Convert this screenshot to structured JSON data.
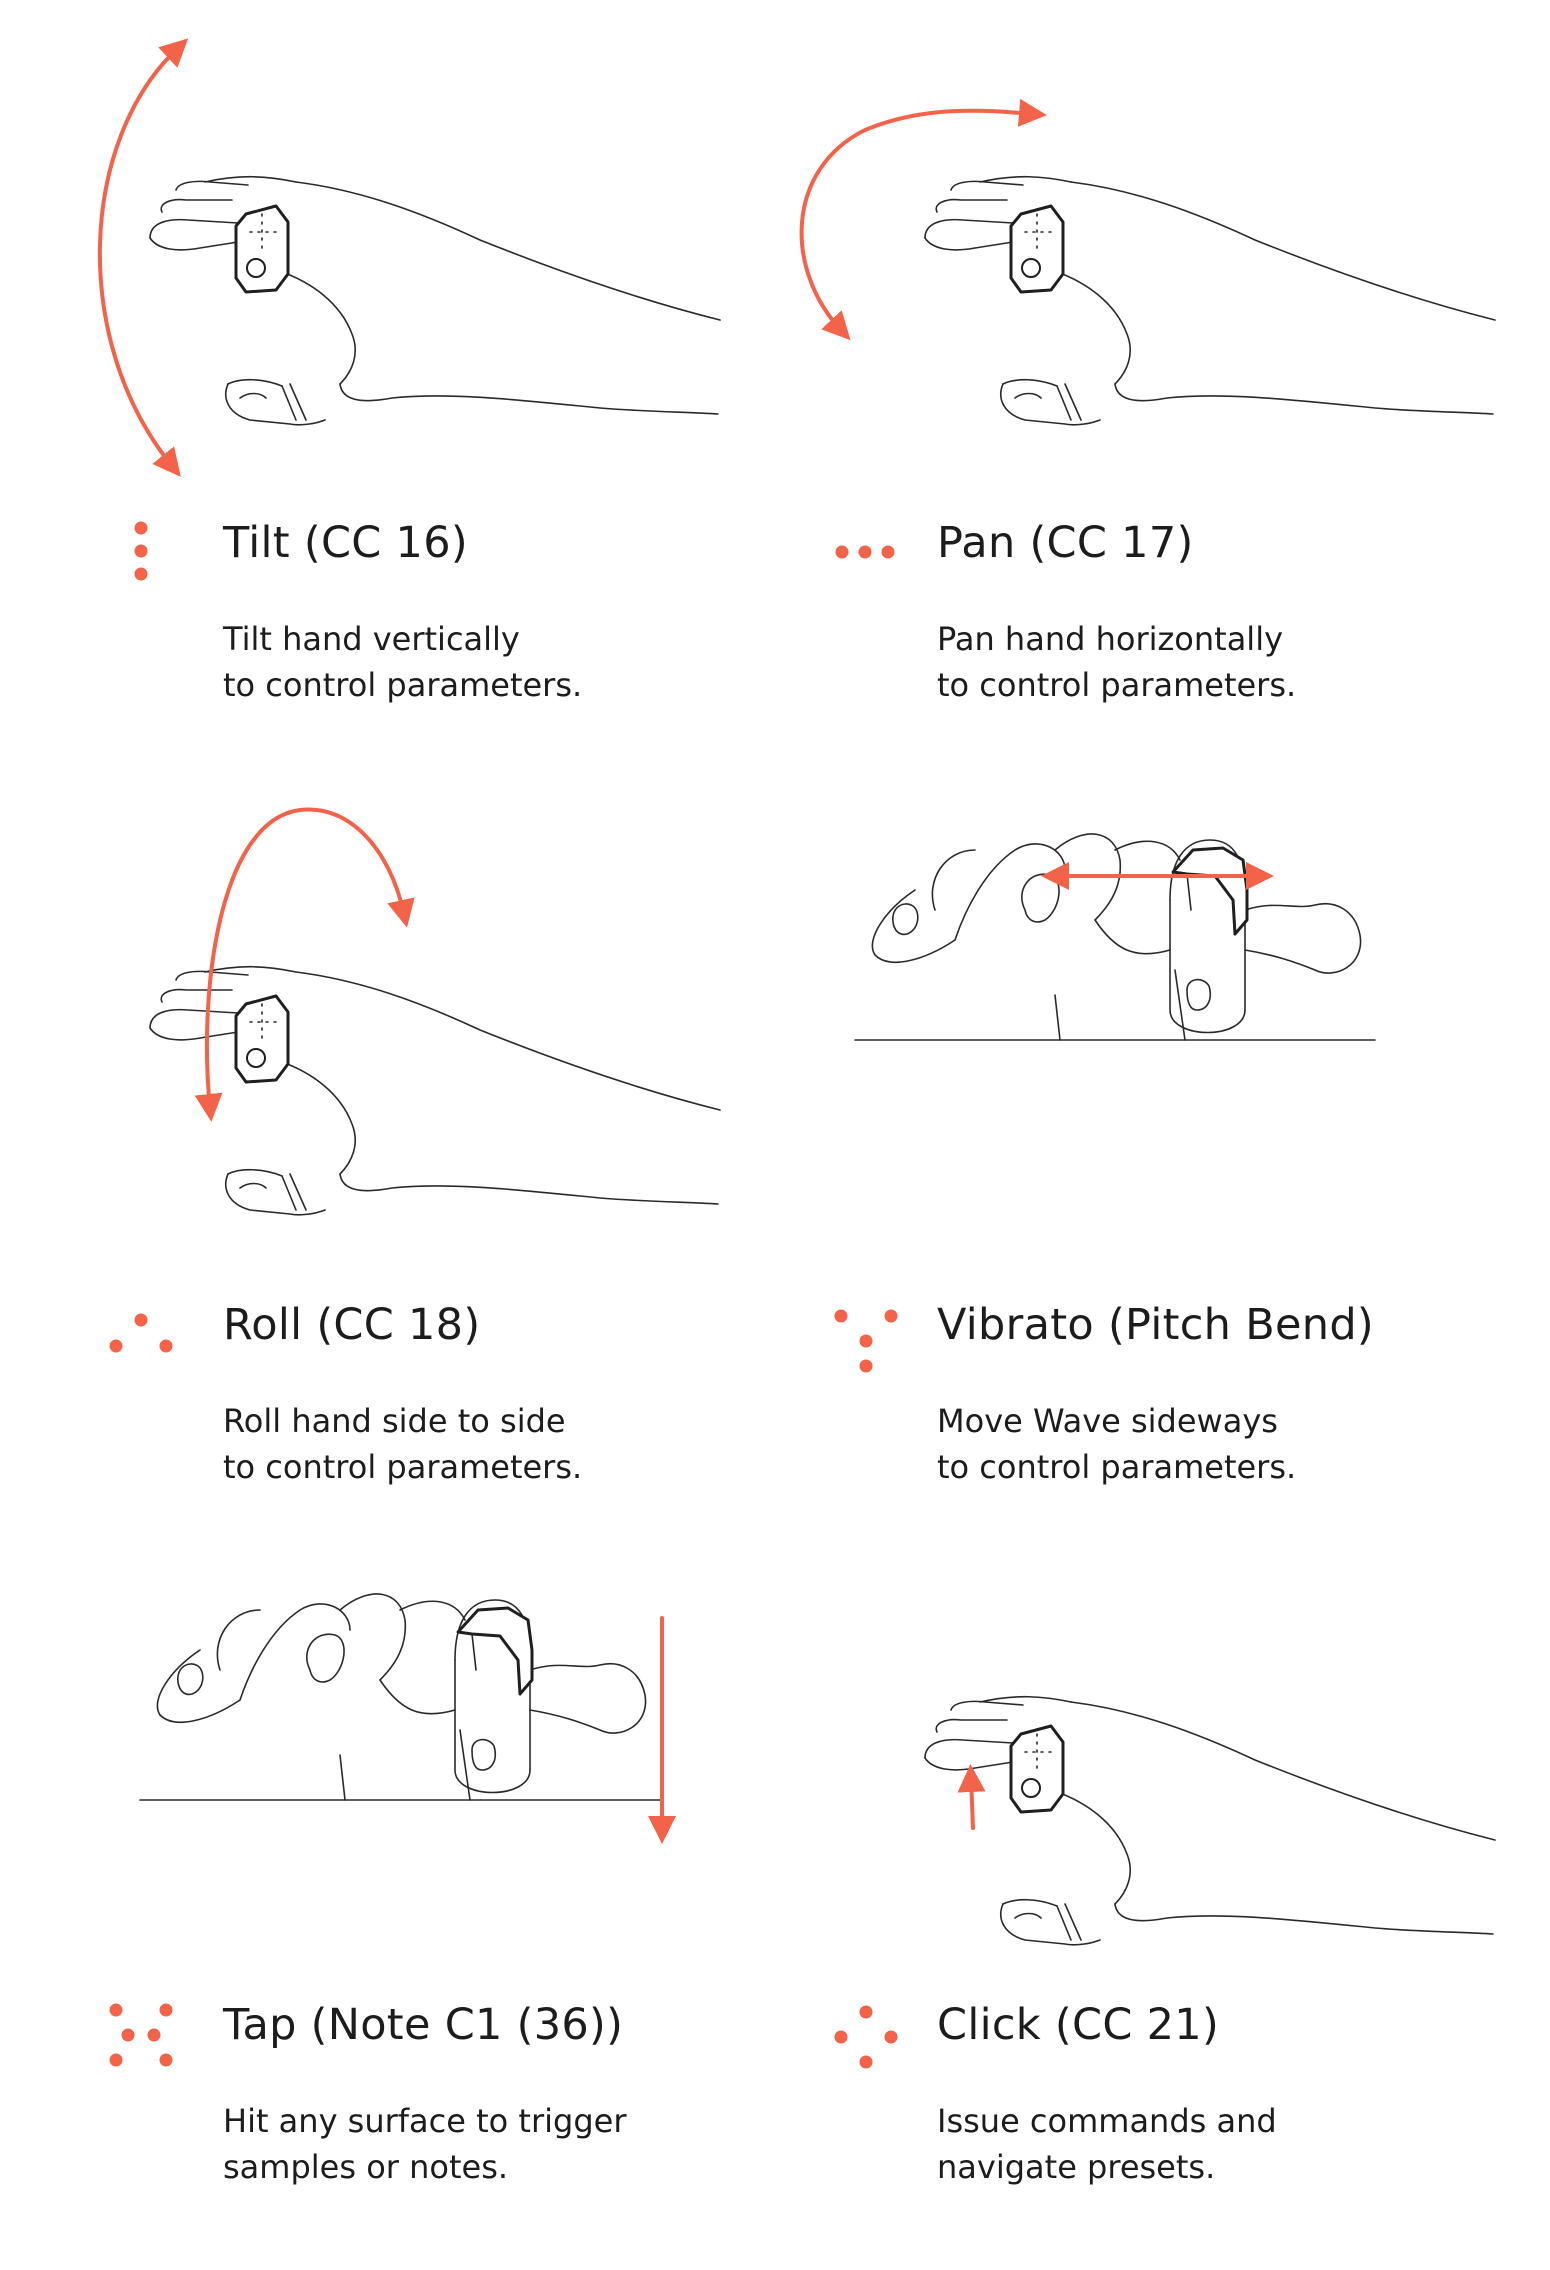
{
  "accent_color": "#f2634a",
  "gestures": [
    {
      "id": "tilt",
      "title": "Tilt (CC 16)",
      "desc_line1": "Tilt hand vertically",
      "desc_line2": "to control parameters.",
      "dots_icon": "vertical-three-dots-icon",
      "illustration": "hand-with-ring-tilt-arrow"
    },
    {
      "id": "pan",
      "title": "Pan (CC 17)",
      "desc_line1": "Pan hand horizontally",
      "desc_line2": "to control parameters.",
      "dots_icon": "horizontal-three-dots-icon",
      "illustration": "hand-with-ring-pan-arrow"
    },
    {
      "id": "roll",
      "title": "Roll (CC 18)",
      "desc_line1": "Roll hand side to side",
      "desc_line2": "to control parameters.",
      "dots_icon": "arc-three-dots-icon",
      "illustration": "hand-with-ring-roll-arrow"
    },
    {
      "id": "vibrato",
      "title": "Vibrato (Pitch Bend)",
      "desc_line1": "Move Wave sideways",
      "desc_line2": "to control parameters.",
      "dots_icon": "zigzag-four-dots-icon",
      "illustration": "fist-on-surface-sideways-arrow"
    },
    {
      "id": "tap",
      "title": "Tap (Note C1 (36))",
      "desc_line1": "Hit any surface to trigger",
      "desc_line2": "samples or notes.",
      "dots_icon": "six-dots-icon",
      "illustration": "fist-on-surface-down-arrow"
    },
    {
      "id": "click",
      "title": "Click (CC 21)",
      "desc_line1": "Issue commands and",
      "desc_line2": "navigate presets.",
      "dots_icon": "diamond-four-dots-icon",
      "illustration": "hand-with-ring-click-arrow"
    }
  ]
}
